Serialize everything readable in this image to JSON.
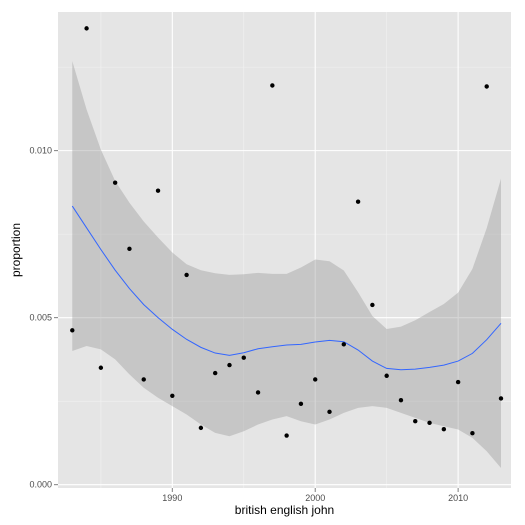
{
  "chart_data": {
    "type": "scatter",
    "title": "",
    "xlabel": "british english john",
    "ylabel": "proportion",
    "xlim": [
      1982,
      2013.7
    ],
    "ylim": [
      -0.0001,
      0.01415
    ],
    "x_ticks": [
      1990,
      2000,
      2010
    ],
    "x_tick_labels": [
      "1990",
      "2000",
      "2010"
    ],
    "y_ticks": [
      0.0,
      0.005,
      0.01
    ],
    "y_tick_labels": [
      "0.000",
      "0.005",
      "0.010"
    ],
    "grid": true,
    "background": "#e5e5e5",
    "points": [
      {
        "x": 1983,
        "y": 0.00462
      },
      {
        "x": 1984,
        "y": 0.01366
      },
      {
        "x": 1985,
        "y": 0.0035
      },
      {
        "x": 1986,
        "y": 0.00904
      },
      {
        "x": 1987,
        "y": 0.00706
      },
      {
        "x": 1988,
        "y": 0.00315
      },
      {
        "x": 1989,
        "y": 0.0088
      },
      {
        "x": 1990,
        "y": 0.00266
      },
      {
        "x": 1991,
        "y": 0.00628
      },
      {
        "x": 1992,
        "y": 0.0017
      },
      {
        "x": 1993,
        "y": 0.00334
      },
      {
        "x": 1994,
        "y": 0.00358
      },
      {
        "x": 1995,
        "y": 0.0038
      },
      {
        "x": 1996,
        "y": 0.00276
      },
      {
        "x": 1997,
        "y": 0.01195
      },
      {
        "x": 1998,
        "y": 0.00147
      },
      {
        "x": 1999,
        "y": 0.00242
      },
      {
        "x": 2000,
        "y": 0.00315
      },
      {
        "x": 2001,
        "y": 0.00218
      },
      {
        "x": 2002,
        "y": 0.0042
      },
      {
        "x": 2003,
        "y": 0.00847
      },
      {
        "x": 2004,
        "y": 0.00538
      },
      {
        "x": 2005,
        "y": 0.00326
      },
      {
        "x": 2006,
        "y": 0.00253
      },
      {
        "x": 2007,
        "y": 0.0019
      },
      {
        "x": 2008,
        "y": 0.00185
      },
      {
        "x": 2009,
        "y": 0.00166
      },
      {
        "x": 2010,
        "y": 0.00307
      },
      {
        "x": 2011,
        "y": 0.00154
      },
      {
        "x": 2012,
        "y": 0.01192
      },
      {
        "x": 2013,
        "y": 0.00258
      }
    ],
    "smooth": {
      "color": "#3366ff",
      "band_color": "#999999",
      "x": [
        1983,
        1984,
        1985,
        1986,
        1987,
        1988,
        1989,
        1990,
        1991,
        1992,
        1993,
        1994,
        1995,
        1996,
        1997,
        1998,
        1999,
        2000,
        2001,
        2002,
        2003,
        2004,
        2005,
        2006,
        2007,
        2008,
        2009,
        2010,
        2011,
        2012,
        2013
      ],
      "y": [
        0.00834,
        0.00769,
        0.00704,
        0.00642,
        0.00587,
        0.00539,
        0.005,
        0.00465,
        0.00435,
        0.00411,
        0.00394,
        0.00387,
        0.00395,
        0.00407,
        0.00413,
        0.00418,
        0.0042,
        0.00427,
        0.00432,
        0.00428,
        0.00403,
        0.0037,
        0.00348,
        0.00344,
        0.00346,
        0.00351,
        0.00358,
        0.0037,
        0.00393,
        0.00434,
        0.00483
      ],
      "lower": [
        0.004,
        0.00415,
        0.00405,
        0.00375,
        0.0033,
        0.0029,
        0.0026,
        0.00235,
        0.0021,
        0.0018,
        0.00155,
        0.00145,
        0.0016,
        0.0018,
        0.00195,
        0.00205,
        0.0019,
        0.0018,
        0.00195,
        0.00215,
        0.0023,
        0.00235,
        0.0023,
        0.00215,
        0.002,
        0.00185,
        0.00175,
        0.00165,
        0.0014,
        0.001,
        0.0005
      ],
      "upper": [
        0.01268,
        0.01123,
        0.01003,
        0.00909,
        0.00844,
        0.00788,
        0.0074,
        0.00695,
        0.0066,
        0.00642,
        0.00633,
        0.00628,
        0.0063,
        0.00634,
        0.00631,
        0.00631,
        0.0065,
        0.00674,
        0.00669,
        0.00641,
        0.00576,
        0.00505,
        0.00466,
        0.00473,
        0.00492,
        0.00517,
        0.00541,
        0.00575,
        0.00646,
        0.00768,
        0.00916
      ]
    }
  }
}
